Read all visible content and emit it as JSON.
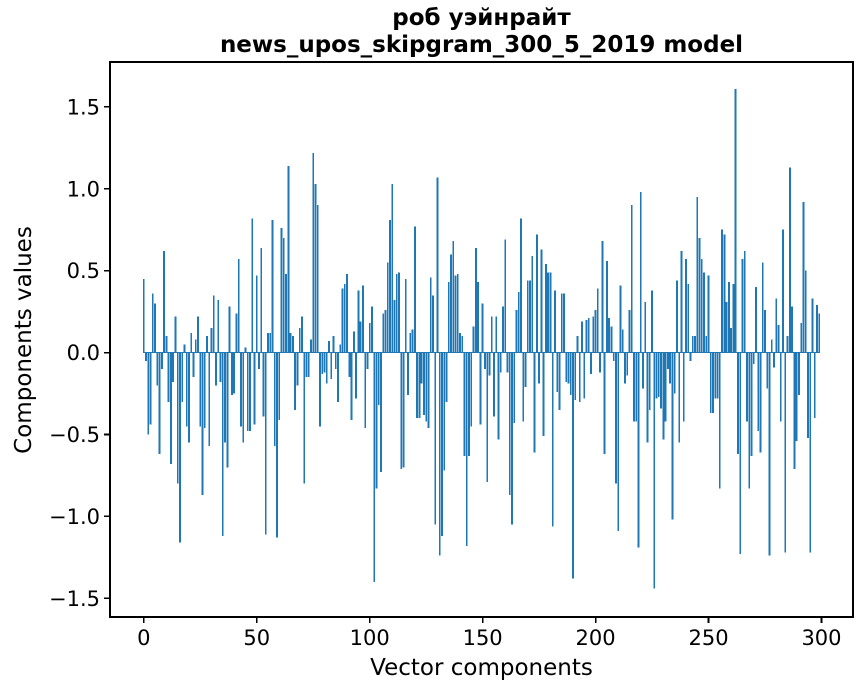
{
  "chart_data": {
    "type": "bar",
    "title_line1": "роб уэйнрайт",
    "title_line2": "news_upos_skipgram_300_5_2019 model",
    "xlabel": "Vector components",
    "ylabel": "Components values",
    "bar_color": "#1f77b4",
    "axis_color": "#000000",
    "n_components": 300,
    "xlim": [
      -14.95,
      313.95
    ],
    "ylim": [
      -1.614,
      1.774
    ],
    "grid": false,
    "legend": null,
    "xticks": {
      "values": [
        0,
        50,
        100,
        150,
        200,
        250,
        300
      ],
      "labels": [
        "0",
        "50",
        "100",
        "150",
        "200",
        "250",
        "300"
      ]
    },
    "yticks": {
      "values": [
        -1.5,
        -1.0,
        -0.5,
        0.0,
        0.5,
        1.0,
        1.5
      ],
      "labels": [
        "−1.5",
        "−1.0",
        "−0.5",
        "0.0",
        "0.5",
        "1.0",
        "1.5"
      ]
    },
    "values": [
      0.45,
      -0.05,
      -0.5,
      -0.44,
      0.36,
      0.3,
      -0.2,
      -0.62,
      -0.1,
      0.62,
      0.1,
      -0.3,
      -0.68,
      -0.18,
      0.22,
      -0.8,
      -1.16,
      -0.3,
      0.05,
      -0.45,
      -0.55,
      0.12,
      -0.15,
      0.08,
      0.22,
      -0.45,
      -0.87,
      -0.46,
      0.1,
      -0.57,
      0.15,
      0.35,
      -0.2,
      0.32,
      -0.18,
      -1.12,
      -0.55,
      -0.7,
      0.28,
      -0.26,
      -0.25,
      0.24,
      0.57,
      -0.45,
      -0.55,
      0.03,
      -0.48,
      -0.48,
      0.82,
      -0.44,
      0.47,
      -0.1,
      0.64,
      -0.39,
      -1.11,
      0.12,
      0.12,
      0.81,
      -0.57,
      -1.13,
      -0.41,
      0.76,
      0.7,
      0.48,
      1.14,
      0.12,
      0.1,
      -0.35,
      -0.2,
      0.15,
      0.22,
      -0.8,
      -0.15,
      -0.15,
      0.08,
      1.22,
      1.03,
      0.9,
      -0.45,
      -0.13,
      -0.12,
      -0.19,
      0.07,
      -0.16,
      0.1,
      -0.1,
      -0.3,
      0.05,
      0.39,
      0.42,
      0.48,
      -0.15,
      -0.41,
      0.13,
      -0.28,
      0.38,
      0.19,
      0.41,
      -0.46,
      -0.1,
      0.18,
      0.28,
      -1.4,
      -0.83,
      -0.32,
      -0.73,
      0.24,
      0.26,
      0.55,
      0.81,
      1.03,
      0.32,
      0.48,
      0.49,
      -0.71,
      -0.7,
      0.45,
      -0.26,
      0.12,
      0.14,
      0.77,
      -0.4,
      -0.4,
      -0.19,
      -0.38,
      -0.42,
      -0.46,
      0.46,
      0.35,
      -1.05,
      1.07,
      -1.24,
      -1.12,
      -0.72,
      -0.3,
      0.43,
      0.6,
      0.68,
      0.47,
      0.48,
      0.12,
      0.1,
      -0.63,
      -1.18,
      -0.63,
      -0.45,
      0.16,
      0.64,
      0.43,
      -0.44,
      0.3,
      -0.1,
      -0.79,
      -0.14,
      0.22,
      -0.39,
      0.22,
      -0.53,
      -0.12,
      0.28,
      0.69,
      -0.12,
      -0.87,
      -1.05,
      -0.43,
      0.26,
      0.37,
      0.82,
      -0.42,
      -0.21,
      0.44,
      0.44,
      0.59,
      -0.61,
      0.72,
      -0.19,
      0.63,
      -0.51,
      0.54,
      0.49,
      0.49,
      -1.06,
      0.38,
      -0.24,
      -0.35,
      0.36,
      0.36,
      -0.18,
      -0.19,
      -0.26,
      -1.38,
      -0.29,
      0.1,
      -0.3,
      0.19,
      -0.28,
      0.2,
      0.21,
      -0.13,
      0.22,
      0.26,
      0.39,
      -0.12,
      0.68,
      -0.62,
      0.56,
      0.21,
      0.16,
      -0.05,
      -0.8,
      -1.09,
      0.41,
      0.14,
      -0.19,
      -0.14,
      0.26,
      0.9,
      -0.42,
      -0.42,
      -1.19,
      0.98,
      -0.22,
      0.31,
      -0.55,
      -0.35,
      0.38,
      -1.44,
      -0.28,
      -0.27,
      -0.34,
      -0.53,
      -0.42,
      -0.1,
      -0.19,
      -1.02,
      -0.25,
      0.44,
      -0.55,
      0.62,
      -0.42,
      0.57,
      0.42,
      -0.05,
      0.1,
      0.1,
      0.95,
      0.7,
      0.57,
      0.49,
      0.1,
      0.47,
      -0.37,
      -0.37,
      -0.28,
      -0.28,
      -0.83,
      0.75,
      0.72,
      0.31,
      0.43,
      0.15,
      0.42,
      1.61,
      -0.62,
      -1.23,
      0.57,
      0.62,
      -0.42,
      -0.83,
      -0.63,
      -0.07,
      0.4,
      -0.48,
      -0.61,
      0.55,
      0.26,
      -0.22,
      -1.24,
      0.08,
      -0.09,
      0.33,
      0.17,
      -0.42,
      0.75,
      -1.22,
      0.1,
      1.13,
      0.28,
      -0.71,
      -0.54,
      -0.26,
      0.18,
      0.92,
      0.5,
      -0.52,
      -1.22,
      0.33,
      -0.4,
      0.29,
      0.24
    ]
  }
}
